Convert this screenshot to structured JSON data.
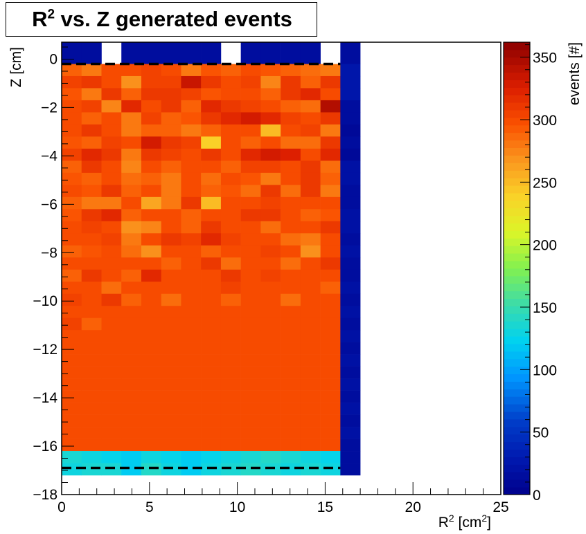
{
  "chart_data": {
    "type": "heatmap",
    "title": "R² vs. Z generated events",
    "title_parts": {
      "pre": "R",
      "sup": "2",
      "post": " vs. Z generated events"
    },
    "xlabel": "R² [cm²]",
    "ylabel": "Z [cm]",
    "zlabel": "events [#]",
    "xlim": [
      0,
      25
    ],
    "ylim": [
      -18,
      0.7
    ],
    "zlim": [
      0,
      362
    ],
    "x_ticks": [
      "0",
      "5",
      "10",
      "15",
      "20",
      "25"
    ],
    "y_ticks": [
      "0",
      "−2",
      "−4",
      "−6",
      "−8",
      "−10",
      "−12",
      "−14",
      "−16",
      "−18"
    ],
    "z_ticks": [
      "0",
      "50",
      "100",
      "150",
      "200",
      "250",
      "300",
      "350"
    ],
    "x_bin_width": 1.1333,
    "y_bin_edges": [
      0.7,
      -0.2,
      -0.7,
      -1.2,
      -1.7,
      -2.2,
      -2.7,
      -3.2,
      -3.7,
      -4.2,
      -4.7,
      -5.2,
      -5.7,
      -6.2,
      -6.7,
      -7.2,
      -7.7,
      -8.2,
      -8.7,
      -9.2,
      -9.7,
      -10.2,
      -10.7,
      -11.2,
      -11.7,
      -12.2,
      -12.7,
      -13.2,
      -13.7,
      -14.2,
      -14.7,
      -15.2,
      -15.7,
      -16.2,
      -16.7,
      -17.2
    ],
    "values": [
      [
        15,
        15,
        0,
        15,
        15,
        15,
        15,
        15,
        0,
        15,
        15,
        15,
        15,
        0,
        15
      ],
      [
        290,
        280,
        300,
        300,
        305,
        300,
        280,
        295,
        290,
        300,
        295,
        290,
        285,
        280,
        25
      ],
      [
        305,
        310,
        300,
        270,
        305,
        305,
        335,
        310,
        300,
        305,
        275,
        310,
        290,
        310,
        25
      ],
      [
        295,
        280,
        310,
        290,
        310,
        310,
        305,
        295,
        300,
        300,
        290,
        310,
        320,
        300,
        25
      ],
      [
        300,
        305,
        275,
        320,
        300,
        310,
        290,
        320,
        310,
        305,
        300,
        290,
        285,
        345,
        15
      ],
      [
        300,
        290,
        300,
        280,
        305,
        290,
        295,
        310,
        320,
        330,
        320,
        305,
        300,
        310,
        15
      ],
      [
        300,
        310,
        300,
        280,
        290,
        290,
        280,
        290,
        300,
        300,
        250,
        300,
        305,
        280,
        10
      ],
      [
        295,
        290,
        305,
        300,
        330,
        310,
        305,
        240,
        300,
        290,
        300,
        285,
        285,
        310,
        15
      ],
      [
        305,
        320,
        310,
        280,
        310,
        305,
        300,
        310,
        300,
        320,
        330,
        325,
        300,
        320,
        10
      ],
      [
        290,
        310,
        300,
        275,
        300,
        290,
        300,
        300,
        290,
        305,
        305,
        300,
        310,
        285,
        20
      ],
      [
        295,
        290,
        300,
        285,
        290,
        280,
        300,
        285,
        300,
        295,
        280,
        300,
        310,
        290,
        20
      ],
      [
        300,
        295,
        310,
        290,
        300,
        280,
        300,
        290,
        295,
        285,
        310,
        285,
        310,
        280,
        15
      ],
      [
        290,
        280,
        280,
        300,
        260,
        280,
        310,
        250,
        300,
        300,
        305,
        300,
        300,
        300,
        15
      ],
      [
        295,
        310,
        320,
        290,
        300,
        300,
        290,
        300,
        300,
        310,
        310,
        300,
        290,
        295,
        20
      ],
      [
        300,
        305,
        300,
        270,
        275,
        300,
        290,
        310,
        300,
        300,
        285,
        300,
        300,
        310,
        20
      ],
      [
        300,
        300,
        305,
        280,
        300,
        310,
        305,
        320,
        305,
        300,
        300,
        285,
        280,
        300,
        15
      ],
      [
        290,
        295,
        300,
        285,
        270,
        300,
        300,
        290,
        300,
        300,
        305,
        300,
        270,
        300,
        20
      ],
      [
        300,
        300,
        300,
        300,
        300,
        290,
        300,
        310,
        285,
        300,
        300,
        285,
        300,
        310,
        15
      ],
      [
        290,
        310,
        300,
        290,
        320,
        300,
        300,
        300,
        310,
        300,
        305,
        300,
        300,
        300,
        15
      ],
      [
        300,
        300,
        285,
        300,
        300,
        300,
        300,
        300,
        305,
        300,
        300,
        300,
        300,
        290,
        20
      ],
      [
        305,
        300,
        310,
        290,
        300,
        285,
        300,
        300,
        290,
        300,
        300,
        285,
        300,
        300,
        15
      ],
      [
        300,
        300,
        300,
        300,
        300,
        300,
        300,
        300,
        300,
        300,
        300,
        300,
        300,
        300,
        20
      ],
      [
        305,
        290,
        300,
        300,
        300,
        300,
        300,
        300,
        300,
        300,
        300,
        300,
        300,
        300,
        15
      ],
      [
        300,
        300,
        300,
        300,
        300,
        300,
        300,
        300,
        300,
        300,
        300,
        300,
        300,
        300,
        20
      ],
      [
        300,
        300,
        300,
        300,
        300,
        300,
        300,
        300,
        300,
        300,
        300,
        300,
        300,
        300,
        15
      ],
      [
        300,
        300,
        300,
        300,
        300,
        300,
        300,
        300,
        300,
        300,
        300,
        300,
        300,
        300,
        20
      ],
      [
        300,
        300,
        300,
        300,
        300,
        300,
        300,
        300,
        300,
        300,
        300,
        300,
        300,
        300,
        15
      ],
      [
        300,
        300,
        300,
        300,
        300,
        300,
        300,
        300,
        300,
        300,
        300,
        300,
        300,
        300,
        20
      ],
      [
        300,
        300,
        300,
        300,
        300,
        300,
        300,
        300,
        300,
        300,
        300,
        300,
        300,
        300,
        15
      ],
      [
        300,
        300,
        300,
        300,
        300,
        300,
        300,
        300,
        300,
        300,
        300,
        300,
        300,
        300,
        20
      ],
      [
        300,
        300,
        300,
        300,
        300,
        300,
        300,
        300,
        300,
        300,
        300,
        300,
        300,
        300,
        15
      ],
      [
        300,
        300,
        300,
        300,
        300,
        300,
        300,
        300,
        300,
        300,
        300,
        300,
        300,
        300,
        20
      ],
      [
        300,
        300,
        300,
        300,
        300,
        300,
        300,
        300,
        300,
        300,
        300,
        300,
        300,
        300,
        15
      ],
      [
        135,
        130,
        125,
        120,
        130,
        125,
        120,
        125,
        130,
        135,
        140,
        135,
        130,
        125,
        15
      ],
      [
        130,
        135,
        135,
        120,
        140,
        130,
        120,
        130,
        135,
        140,
        135,
        130,
        135,
        130,
        15
      ]
    ],
    "dashed_lines_y": [
      -0.2,
      -16.9
    ],
    "legend_placement": "right"
  }
}
